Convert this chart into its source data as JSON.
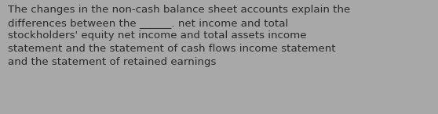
{
  "background_color": "#a8a8a8",
  "text_color": "#2a2a2a",
  "text": "The changes in the non-cash balance sheet accounts explain the\ndifferences between the ______. net income and total\nstockholders' equity net income and total assets income\nstatement and the statement of cash flows income statement\nand the statement of retained earnings",
  "font_size": 9.6,
  "fig_width": 5.58,
  "fig_height": 1.46,
  "dpi": 100
}
